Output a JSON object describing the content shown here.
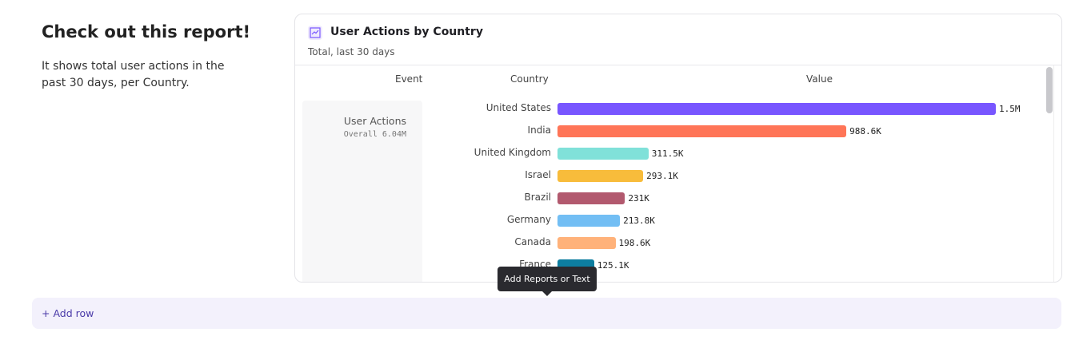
{
  "text": {
    "title": "Check out this report!",
    "description": "It shows total user actions in the past 30 days, per Country."
  },
  "report": {
    "icon": "line-chart-icon",
    "title": "User Actions by Country",
    "subtitle": "Total, last 30 days",
    "columns": [
      "Event",
      "Country",
      "Value"
    ],
    "event": {
      "name": "User Actions",
      "summary": "Overall  6.04M"
    }
  },
  "chart_data": {
    "type": "bar",
    "orientation": "horizontal",
    "xlim": [
      0,
      1500000
    ],
    "categories": [
      "United States",
      "India",
      "United Kingdom",
      "Israel",
      "Brazil",
      "Germany",
      "Canada",
      "France"
    ],
    "values": [
      1500000,
      988600,
      311500,
      293100,
      231000,
      213800,
      198600,
      125100
    ],
    "labels": [
      "1.5M",
      "988.6K",
      "311.5K",
      "293.1K",
      "231K",
      "213.8K",
      "198.6K",
      "125.1K"
    ],
    "colors": [
      "#7856ff",
      "#ff7557",
      "#80e1d9",
      "#f8bc3b",
      "#b2596e",
      "#72bef4",
      "#ffb27a",
      "#0d7ea0"
    ]
  },
  "add_row": {
    "label": "+ Add row"
  },
  "tooltip": {
    "label": "Add Reports or Text"
  }
}
